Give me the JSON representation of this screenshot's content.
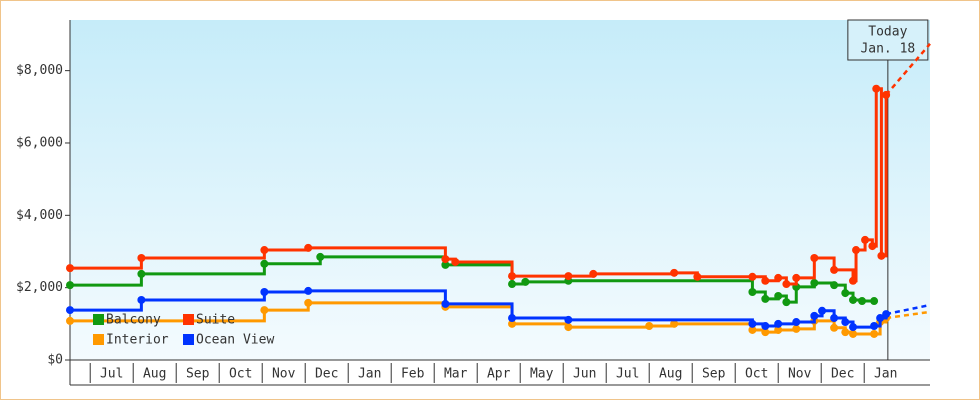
{
  "chart_data": {
    "type": "step-line",
    "months": [
      "Jul",
      "Aug",
      "Sep",
      "Oct",
      "Nov",
      "Dec",
      "Jan",
      "Feb",
      "Mar",
      "Apr",
      "May",
      "Jun",
      "Jul",
      "Aug",
      "Sep",
      "Oct",
      "Nov",
      "Dec",
      "Jan"
    ],
    "xlim": [
      -0.47,
      19.53
    ],
    "ylim": [
      0,
      9400
    ],
    "yticks": [
      {
        "value": 0,
        "label": "$0"
      },
      {
        "value": 2000,
        "label": "$2,000"
      },
      {
        "value": 4000,
        "label": "$4,000"
      },
      {
        "value": 6000,
        "label": "$6,000"
      },
      {
        "value": 8000,
        "label": "$8,000"
      }
    ],
    "today": {
      "lines": [
        "Today",
        "Jan. 18"
      ],
      "x": 18.55
    },
    "series": [
      {
        "name": "Balcony",
        "color": "#119911",
        "x": [
          -0.47,
          1.19,
          4.05,
          5.35,
          8.26,
          9.81,
          10.12,
          11.12,
          15.4,
          15.7,
          16.0,
          16.19,
          16.42,
          16.84,
          17.3,
          17.56,
          17.74,
          17.95,
          18.23
        ],
        "values": [
          2070,
          2380,
          2660,
          2850,
          2630,
          2100,
          2160,
          2190,
          1880,
          1690,
          1770,
          1600,
          2020,
          2130,
          2070,
          1850,
          1660,
          1630,
          1630
        ]
      },
      {
        "name": "Suite",
        "color": "#ff3300",
        "x": [
          -0.47,
          1.19,
          4.05,
          5.07,
          8.26,
          8.49,
          9.81,
          11.12,
          11.7,
          13.58,
          14.12,
          15.4,
          15.7,
          16.0,
          16.19,
          16.42,
          16.84,
          17.3,
          17.74,
          17.81,
          18.02,
          18.19,
          18.28,
          18.4,
          18.51
        ],
        "values": [
          2540,
          2820,
          3040,
          3100,
          2790,
          2710,
          2320,
          2320,
          2380,
          2410,
          2300,
          2300,
          2190,
          2270,
          2100,
          2270,
          2820,
          2490,
          2190,
          3040,
          3320,
          3150,
          7500,
          2880,
          7330
        ],
        "projected_x": 19.53,
        "projected_value": 8740
      },
      {
        "name": "Interior",
        "color": "#ff9900",
        "x": [
          -0.47,
          4.05,
          5.07,
          8.26,
          9.81,
          11.12,
          13.0,
          13.58,
          15.4,
          15.7,
          16.0,
          16.42,
          16.84,
          17.3,
          17.56,
          17.74,
          18.23,
          18.37,
          18.51
        ],
        "values": [
          1080,
          1380,
          1580,
          1470,
          1000,
          910,
          940,
          1000,
          830,
          770,
          830,
          860,
          1080,
          890,
          770,
          720,
          720,
          1050,
          1160
        ],
        "projected_x": 19.53,
        "projected_value": 1330
      },
      {
        "name": "Ocean View",
        "color": "#0033ff",
        "x": [
          -0.47,
          1.19,
          4.05,
          5.07,
          8.26,
          9.81,
          11.12,
          15.4,
          15.7,
          16.0,
          16.42,
          16.84,
          17.02,
          17.3,
          17.56,
          17.74,
          18.23,
          18.37,
          18.51
        ],
        "values": [
          1380,
          1660,
          1880,
          1910,
          1550,
          1160,
          1110,
          1000,
          940,
          1000,
          1050,
          1220,
          1360,
          1160,
          1050,
          910,
          940,
          1160,
          1270
        ],
        "projected_x": 19.53,
        "projected_value": 1520
      }
    ]
  }
}
